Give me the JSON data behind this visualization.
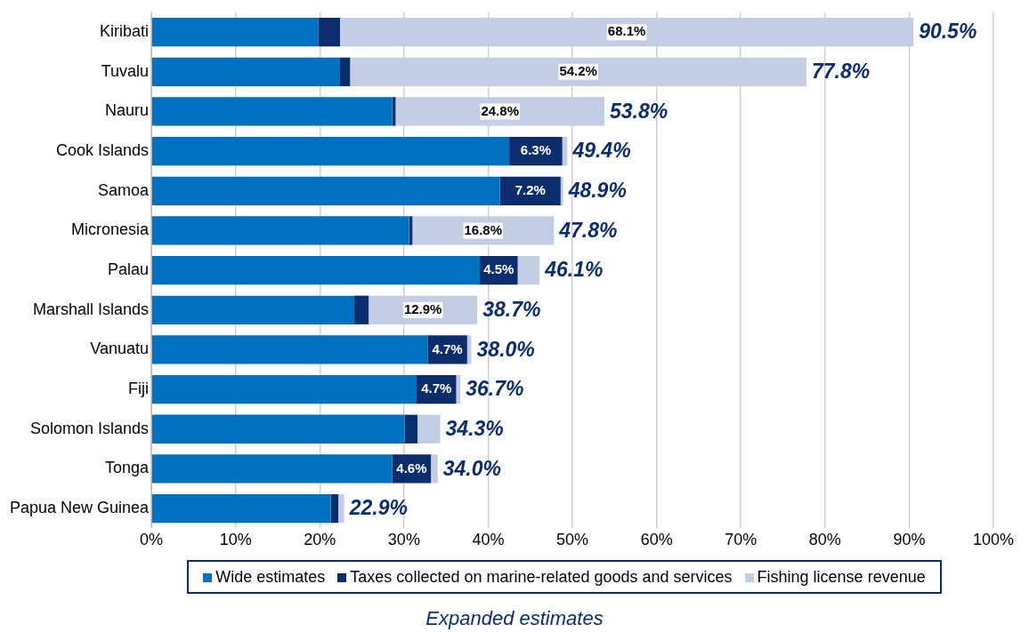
{
  "chart_data": {
    "type": "bar",
    "orientation": "horizontal",
    "stacked": true,
    "categories": [
      "Kiribati",
      "Tuvalu",
      "Nauru",
      "Cook Islands",
      "Samoa",
      "Micronesia",
      "Palau",
      "Marshall Islands",
      "Vanuatu",
      "Fiji",
      "Solomon Islands",
      "Tonga",
      "Papua New Guinea"
    ],
    "series": [
      {
        "name": "Wide estimates",
        "color": "#0070c0",
        "values": [
          19.8,
          22.4,
          28.6,
          42.5,
          41.4,
          30.6,
          39.0,
          24.1,
          32.8,
          31.5,
          30.1,
          28.6,
          21.3
        ]
      },
      {
        "name": "Taxes collected on marine-related goods and services",
        "color": "#0b2d6b",
        "values": [
          2.6,
          1.2,
          0.4,
          6.3,
          7.2,
          0.4,
          4.5,
          1.7,
          4.7,
          4.7,
          1.5,
          4.6,
          0.9
        ],
        "value_labels": [
          null,
          null,
          null,
          "6.3%",
          "7.2%",
          null,
          "4.5%",
          null,
          "4.7%",
          "4.7%",
          null,
          "4.6%",
          null
        ]
      },
      {
        "name": "Fishing license revenue",
        "color": "#c3cde3",
        "values": [
          68.1,
          54.2,
          24.8,
          0.6,
          0.3,
          16.8,
          2.6,
          12.9,
          0.5,
          0.5,
          2.7,
          0.8,
          0.7
        ],
        "value_labels": [
          "68.1%",
          "54.2%",
          "24.8%",
          null,
          null,
          "16.8%",
          null,
          "12.9%",
          null,
          null,
          null,
          null,
          null
        ]
      }
    ],
    "totals": [
      "90.5%",
      "77.8%",
      "53.8%",
      "49.4%",
      "48.9%",
      "47.8%",
      "46.1%",
      "38.7%",
      "38.0%",
      "36.7%",
      "34.3%",
      "34.0%",
      "22.9%"
    ],
    "xlim": [
      0,
      100
    ],
    "xticks": [
      {
        "value": 0,
        "label": "0%"
      },
      {
        "value": 10,
        "label": "10%"
      },
      {
        "value": 20,
        "label": "20%"
      },
      {
        "value": 30,
        "label": "30%"
      },
      {
        "value": 40,
        "label": "40%"
      },
      {
        "value": 50,
        "label": "50%"
      },
      {
        "value": 60,
        "label": "60%"
      },
      {
        "value": 70,
        "label": "70%"
      },
      {
        "value": 80,
        "label": "80%"
      },
      {
        "value": 90,
        "label": "90%"
      },
      {
        "value": 100,
        "label": "100%"
      }
    ],
    "grid": "x",
    "legend": "bottom",
    "annotations": [
      "Expanded estimates"
    ]
  }
}
